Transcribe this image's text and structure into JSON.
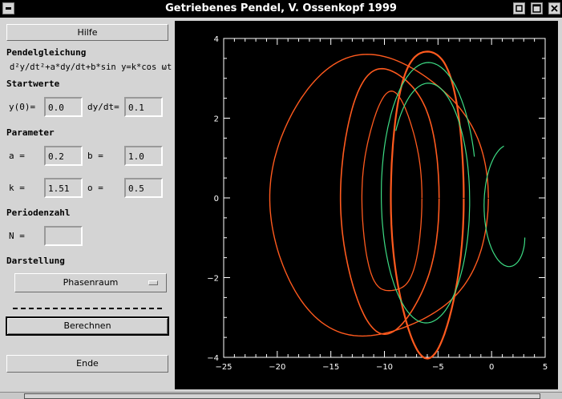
{
  "window": {
    "title": "Getriebenes Pendel, V. Ossenkopf 1999"
  },
  "panel": {
    "help_button": "Hilfe",
    "equation_header": "Pendelgleichung",
    "equation": "d²y/dt²+a*dy/dt+b*sin y=k*cos ωt",
    "start_header": "Startwerte",
    "y0_label": "y(0)=",
    "y0_value": "0.0",
    "dydt_label": "dy/dt=",
    "dydt_value": "0.1",
    "param_header": "Parameter",
    "a_label": "a  =",
    "a_value": "0.2",
    "b_label": "b  =",
    "b_value": "1.0",
    "k_label": "k  =",
    "k_value": "1.51",
    "o_label": "o  =",
    "o_value": "0.5",
    "period_header": "Periodenzahl",
    "n_label": "N  =",
    "n_value": "",
    "display_header": "Darstellung",
    "display_select": "Phasenraum",
    "separator": "--------------------------",
    "calc_button": "Berechnen",
    "end_button": "Ende"
  },
  "chart_data": {
    "type": "line",
    "xlim": [
      -25,
      5
    ],
    "ylim": [
      -4,
      4
    ],
    "x_ticks": [
      "−25",
      "−20",
      "−15",
      "−10",
      "−5",
      "0",
      "5"
    ],
    "y_ticks": [
      "−4",
      "−2",
      "0",
      "2",
      "4"
    ],
    "colors": {
      "orange": "#ff5a1e",
      "green": "#3ddc84"
    }
  }
}
